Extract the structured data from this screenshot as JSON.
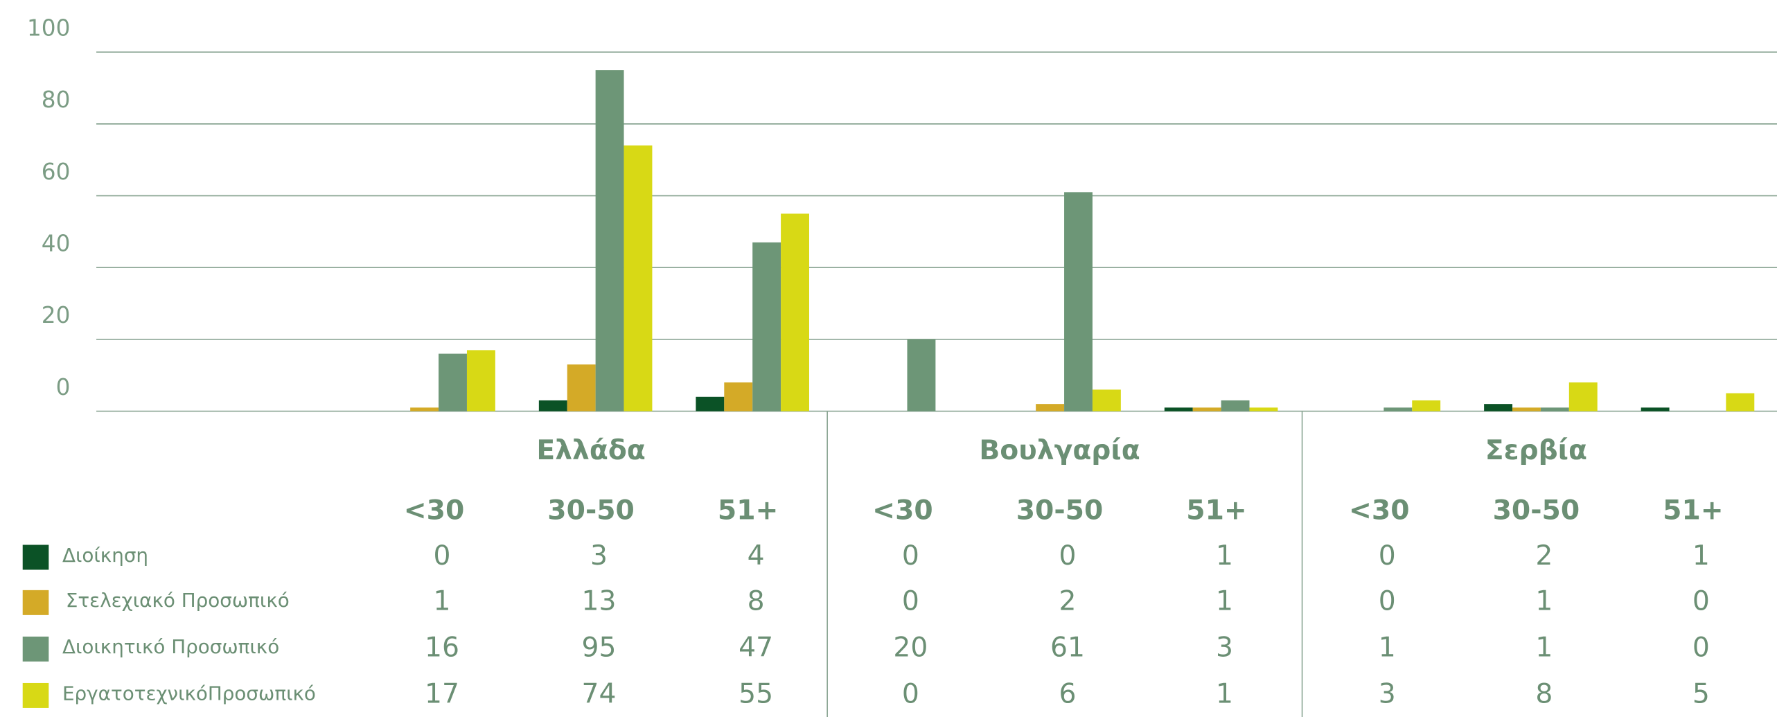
{
  "chart_data": {
    "type": "bar",
    "groups": [
      "Ελλάδα",
      "Βουλγαρία",
      "Σερβία"
    ],
    "categories": [
      "<30",
      "30-50",
      "51+",
      "<30",
      "30-50",
      "51+",
      "<30",
      "30-50",
      "51+"
    ],
    "series": [
      {
        "name": "Διοίκηση",
        "color": "#0b5226",
        "values": [
          0,
          3,
          4,
          0,
          0,
          1,
          0,
          2,
          1
        ]
      },
      {
        "name": "Στελεχιακό Προσωπικό",
        "color": "#d4aa27",
        "values": [
          1,
          13,
          8,
          0,
          2,
          1,
          0,
          1,
          0
        ]
      },
      {
        "name": "Διοικητικό Προσωπικό",
        "color": "#6d9677",
        "values": [
          16,
          95,
          47,
          20,
          61,
          3,
          1,
          1,
          0
        ]
      },
      {
        "name": "ΕργατοτεχνικόΠροσωπικό",
        "color": "#d8d915",
        "values": [
          17,
          74,
          55,
          0,
          6,
          1,
          3,
          8,
          5
        ]
      }
    ],
    "ylim": [
      0,
      100
    ],
    "yticks": [
      0,
      20,
      40,
      60,
      80,
      100
    ],
    "grid": true
  }
}
